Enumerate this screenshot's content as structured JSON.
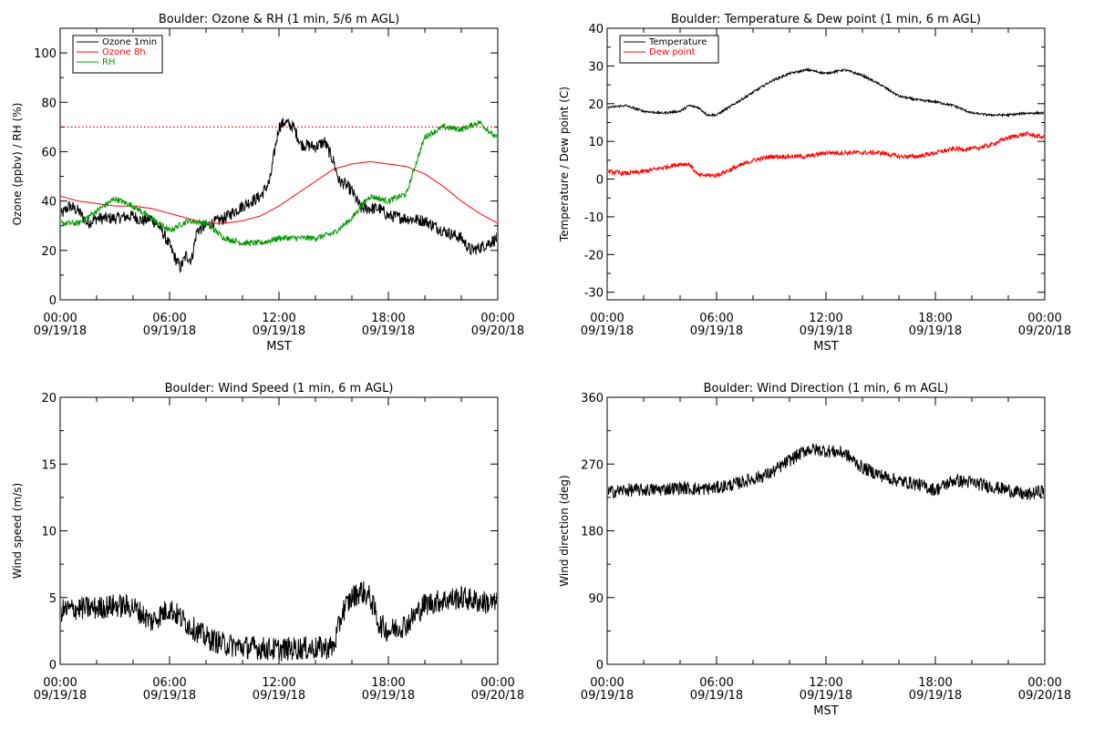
{
  "x_tick_labels": [
    {
      "time": "00:00",
      "date": "09/19/18"
    },
    {
      "time": "06:00",
      "date": "09/19/18"
    },
    {
      "time": "12:00",
      "date": "09/19/18"
    },
    {
      "time": "18:00",
      "date": "09/19/18"
    },
    {
      "time": "00:00",
      "date": "09/20/18"
    }
  ],
  "chart_data": [
    {
      "type": "line",
      "title": "Boulder: Ozone & RH (1 min, 5/6 m AGL)",
      "xlabel": "MST",
      "ylabel": "Ozone (ppbv) / RH (%)",
      "xlim": [
        0,
        24
      ],
      "ylim": [
        0,
        110
      ],
      "yticks": [
        0,
        20,
        40,
        60,
        80,
        100
      ],
      "reference_line": {
        "y": 70,
        "style": "dotted",
        "color": "#ff0000"
      },
      "legend": "top-left",
      "series": [
        {
          "name": "Ozone 1min",
          "color": "#000000",
          "noise": 2.5,
          "x": [
            0,
            0.5,
            1,
            1.5,
            2,
            3,
            4,
            4.5,
            5,
            5.5,
            6,
            6.3,
            6.6,
            6.9,
            7.2,
            7.5,
            8,
            9,
            10,
            11,
            11.5,
            11.8,
            12,
            12.3,
            12.8,
            13.2,
            14,
            14.5,
            15,
            15.3,
            15.6,
            16,
            16.5,
            17,
            17.5,
            18,
            19,
            20,
            21,
            22,
            22.5,
            23,
            23.5,
            24
          ],
          "y": [
            34,
            38,
            36,
            31,
            33,
            33,
            34,
            32,
            33,
            29,
            22,
            17,
            13,
            18,
            16,
            28,
            30,
            33,
            38,
            42,
            48,
            62,
            70,
            72,
            70,
            63,
            62,
            64,
            56,
            48,
            47,
            44,
            37,
            37,
            37,
            34,
            33,
            32,
            28,
            25,
            20,
            21,
            23,
            25
          ]
        },
        {
          "name": "Ozone 8h",
          "color": "#ff0000",
          "noise": 0,
          "x": [
            0,
            1,
            2,
            3,
            4,
            5,
            6,
            7,
            8,
            9,
            10,
            11,
            12,
            13,
            14,
            15,
            16,
            17,
            18,
            19,
            20,
            21,
            22,
            23,
            24
          ],
          "y": [
            42,
            40,
            39,
            38,
            38,
            37,
            35,
            33,
            31,
            31,
            32,
            34,
            38,
            43,
            48,
            53,
            55,
            56,
            55,
            54,
            51,
            46,
            40,
            35,
            31
          ]
        },
        {
          "name": "RH",
          "color": "#009900",
          "noise": 1.2,
          "x": [
            0,
            1,
            2,
            3,
            4,
            5,
            6,
            7,
            8,
            9,
            10,
            11,
            12,
            13,
            14,
            15,
            16,
            16.5,
            17,
            18,
            19,
            19.5,
            20,
            21,
            22,
            23,
            24
          ],
          "y": [
            31,
            31,
            36,
            41,
            38,
            33,
            28,
            32,
            31,
            25,
            23,
            23,
            25,
            25,
            25,
            27,
            33,
            38,
            42,
            40,
            43,
            55,
            66,
            70,
            69,
            72,
            65
          ]
        }
      ]
    },
    {
      "type": "line",
      "title": "Boulder: Temperature & Dew point (1 min, 6 m AGL)",
      "xlabel": "MST",
      "ylabel": "Temperature / Dew point (C)",
      "xlim": [
        0,
        24
      ],
      "ylim": [
        -32,
        40
      ],
      "yticks": [
        -30,
        -20,
        -10,
        0,
        10,
        20,
        30,
        40
      ],
      "legend": "top-left",
      "series": [
        {
          "name": "Temperature",
          "color": "#000000",
          "noise": 0.3,
          "x": [
            0,
            1,
            2,
            3,
            4,
            4.5,
            5,
            5.5,
            6,
            7,
            8,
            9,
            10,
            11,
            12,
            13,
            14,
            15,
            16,
            17,
            18,
            19,
            20,
            21,
            22,
            23,
            24
          ],
          "y": [
            19,
            19.5,
            18,
            17.5,
            18,
            19.5,
            19,
            17,
            17,
            20,
            23,
            26,
            28,
            29,
            28,
            29,
            27.5,
            25,
            22,
            21,
            20.5,
            19.5,
            17.5,
            17,
            17,
            17.5,
            17.5
          ]
        },
        {
          "name": "Dew point",
          "color": "#ff0000",
          "noise": 0.6,
          "x": [
            0,
            1,
            2,
            3,
            4,
            4.5,
            5,
            6,
            7,
            8,
            9,
            10,
            11,
            12,
            13,
            14,
            15,
            16,
            17,
            18,
            19,
            20,
            21,
            22,
            23,
            24
          ],
          "y": [
            2,
            1.5,
            2,
            3,
            4,
            4,
            1,
            1,
            3,
            5,
            6,
            6,
            6,
            7,
            7,
            7,
            7,
            6,
            6,
            7,
            8,
            8,
            9,
            11,
            12,
            11
          ]
        }
      ]
    },
    {
      "type": "line",
      "title": "Boulder: Wind Speed (1 min, 6 m AGL)",
      "xlabel": "",
      "ylabel": "Wind speed (m/s)",
      "xlim": [
        0,
        24
      ],
      "ylim": [
        0,
        20
      ],
      "yticks": [
        0,
        5,
        10,
        15,
        20
      ],
      "legend": "none",
      "series": [
        {
          "name": "",
          "color": "#000000",
          "noise": 0.9,
          "x": [
            0,
            1,
            2,
            3,
            4,
            5,
            6,
            7,
            8,
            9,
            10,
            11,
            12,
            13,
            14,
            15,
            15.5,
            16,
            16.5,
            17,
            17.5,
            18,
            19,
            20,
            21,
            22,
            23,
            24
          ],
          "y": [
            4,
            4.2,
            4.2,
            4.4,
            4.3,
            3.2,
            4.2,
            3,
            2,
            1.5,
            1.3,
            1.2,
            1.1,
            1.2,
            1.2,
            1.3,
            4,
            5,
            5.5,
            5,
            3,
            2.5,
            3,
            4.5,
            4.8,
            5,
            4.7,
            4.5
          ]
        }
      ]
    },
    {
      "type": "line",
      "title": "Boulder: Wind Direction (1 min, 6 m AGL)",
      "xlabel": "MST",
      "ylabel": "Wind direction (deg)",
      "xlim": [
        0,
        24
      ],
      "ylim": [
        0,
        360
      ],
      "yticks": [
        0,
        90,
        180,
        270,
        360
      ],
      "legend": "none",
      "series": [
        {
          "name": "",
          "color": "#000000",
          "noise": 9,
          "x": [
            0,
            1,
            2,
            3,
            4,
            5,
            6,
            7,
            8,
            9,
            10,
            11,
            12,
            13,
            14,
            15,
            16,
            17,
            18,
            19,
            20,
            21,
            22,
            23,
            24
          ],
          "y": [
            232,
            235,
            235,
            236,
            238,
            236,
            238,
            243,
            250,
            258,
            275,
            290,
            288,
            285,
            265,
            255,
            247,
            243,
            235,
            248,
            245,
            240,
            235,
            228,
            235
          ]
        }
      ]
    }
  ]
}
